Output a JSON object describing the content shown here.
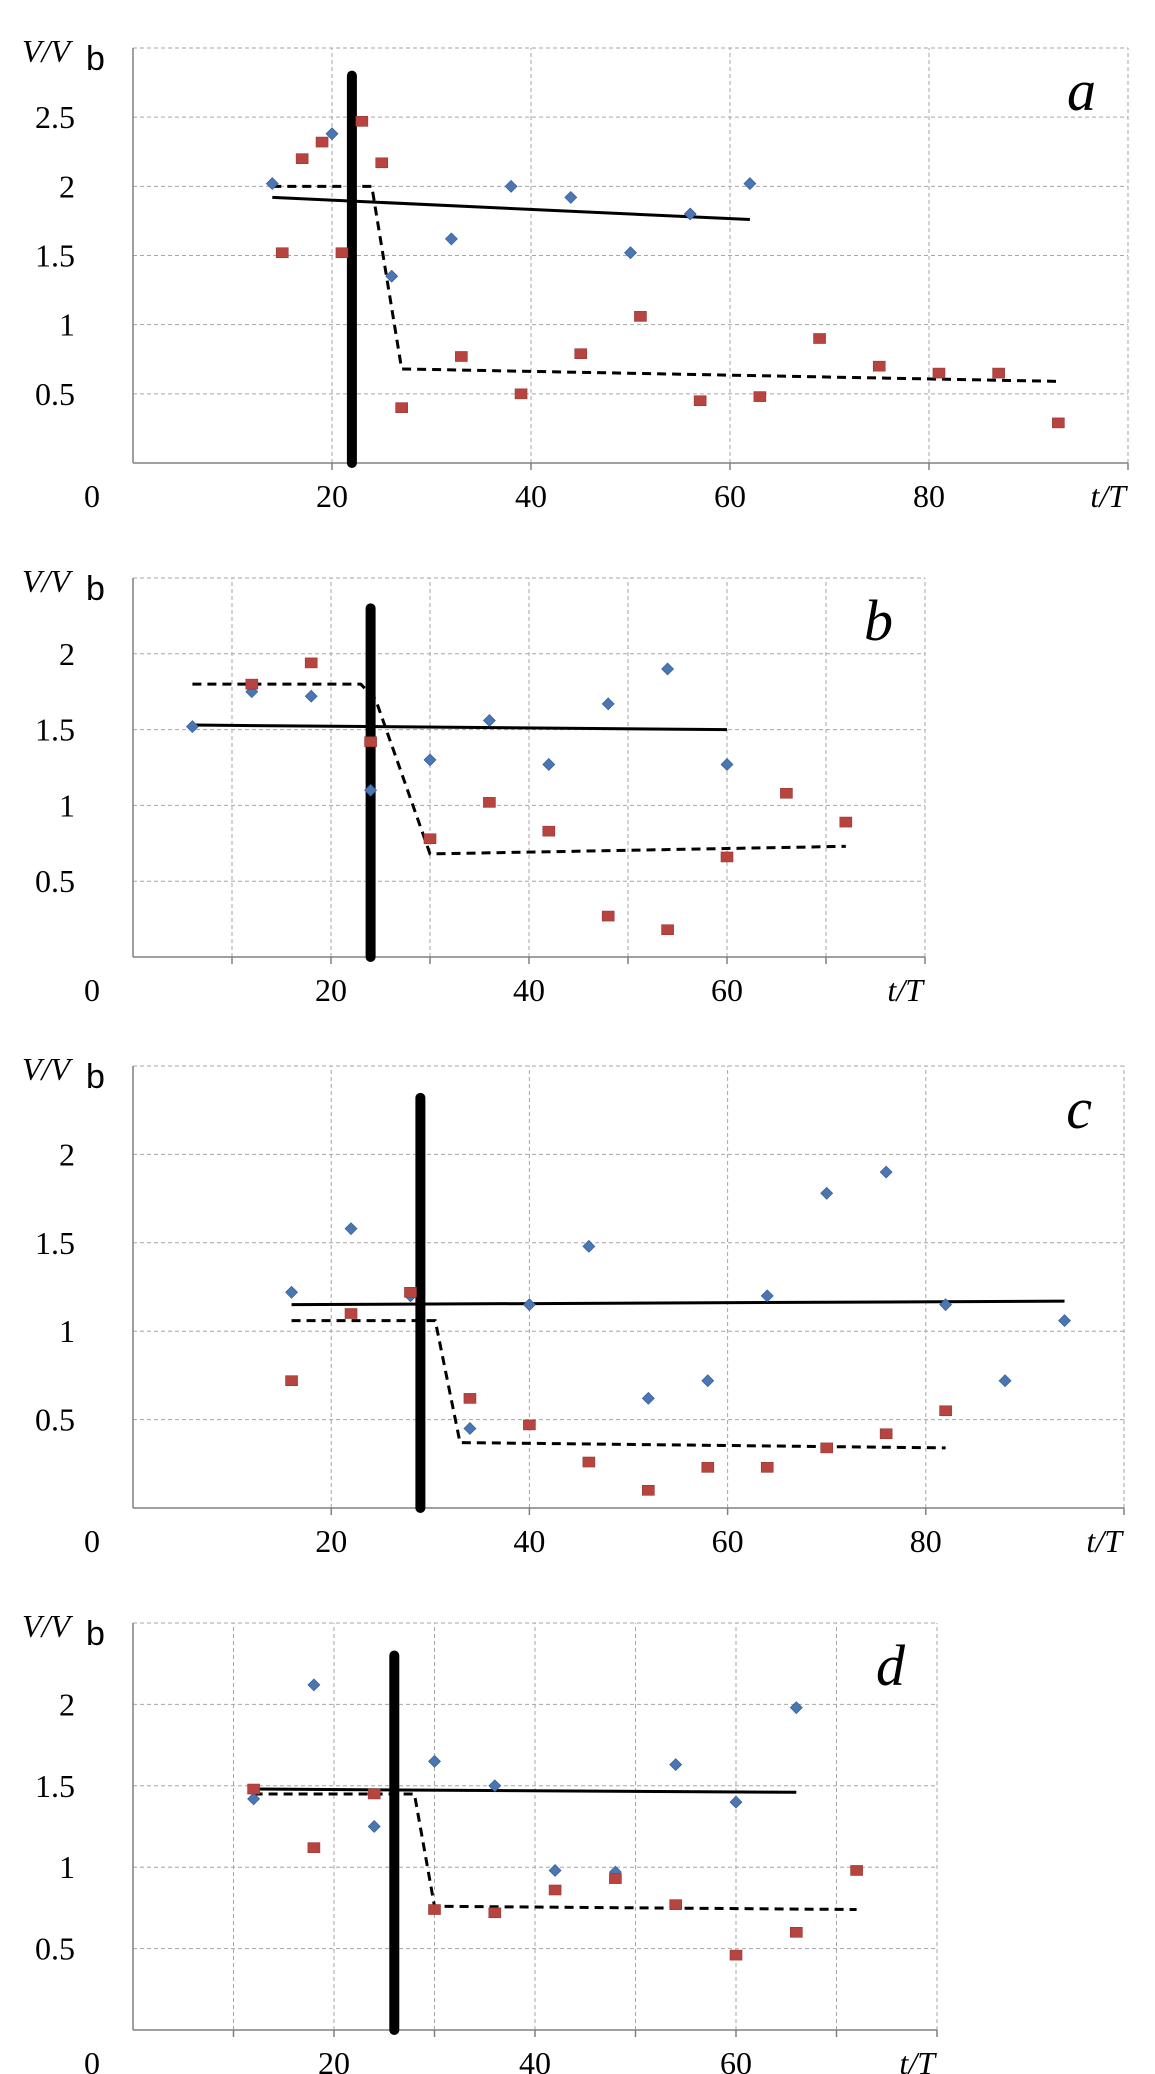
{
  "chart_data": [
    {
      "type": "scatter",
      "panel": "a",
      "ylabel_main": "V/V",
      "ylabel_sub": "b",
      "xlabel": "t/T",
      "origin_label": "0",
      "xlim": [
        0,
        100
      ],
      "ylim": [
        0,
        3
      ],
      "xticks": [
        20,
        40,
        60,
        80
      ],
      "yticks": [
        0.5,
        1,
        1.5,
        2,
        2.5
      ],
      "ytick_labels": [
        "0.5",
        "1",
        "1.5",
        "2",
        "2.5"
      ],
      "xgrid": [
        20,
        40,
        60,
        80,
        100
      ],
      "ygrid": [
        0.5,
        1,
        1.5,
        2,
        2.5,
        3
      ],
      "marker_x": 22,
      "marker_ytop": 2.8,
      "series": [
        {
          "name": "blue",
          "x": [
            14,
            20,
            26,
            32,
            38,
            44,
            50,
            56,
            62
          ],
          "y": [
            2.02,
            2.38,
            1.35,
            1.62,
            2.0,
            1.92,
            1.52,
            1.8,
            2.02
          ]
        },
        {
          "name": "red",
          "x": [
            15,
            17,
            19,
            21,
            23,
            25,
            27,
            33,
            39,
            45,
            51,
            57,
            63,
            69,
            75,
            81,
            87,
            93
          ],
          "y": [
            1.52,
            2.2,
            2.32,
            1.52,
            2.47,
            2.17,
            0.4,
            0.77,
            0.5,
            0.79,
            1.06,
            0.45,
            0.48,
            0.9,
            0.7,
            0.65,
            0.65,
            0.29
          ]
        }
      ],
      "trend_solid": {
        "x": [
          14,
          62
        ],
        "y": [
          1.92,
          1.76
        ]
      },
      "trend_dashed": {
        "x": [
          14,
          24,
          27,
          93
        ],
        "y": [
          2.0,
          2.0,
          0.68,
          0.59
        ]
      }
    },
    {
      "type": "scatter",
      "panel": "b",
      "ylabel_main": "V/V",
      "ylabel_sub": "b",
      "xlabel": "t/T",
      "origin_label": "0",
      "xlim": [
        0,
        80
      ],
      "ylim": [
        0,
        2.5
      ],
      "xticks": [
        20,
        40,
        60
      ],
      "yticks": [
        0.5,
        1,
        1.5,
        2
      ],
      "ytick_labels": [
        "0.5",
        "1",
        "1.5",
        "2"
      ],
      "xgrid": [
        10,
        20,
        30,
        40,
        50,
        60,
        70,
        80
      ],
      "ygrid": [
        0.5,
        1,
        1.5,
        2,
        2.5
      ],
      "marker_x": 24,
      "marker_ytop": 2.3,
      "series": [
        {
          "name": "blue",
          "x": [
            6,
            12,
            18,
            24,
            30,
            36,
            42,
            48,
            54,
            60
          ],
          "y": [
            1.52,
            1.75,
            1.72,
            1.1,
            1.3,
            1.56,
            1.27,
            1.67,
            1.9,
            1.27
          ]
        },
        {
          "name": "red",
          "x": [
            12,
            18,
            24,
            30,
            36,
            42,
            48,
            54,
            60,
            66,
            72
          ],
          "y": [
            1.8,
            1.94,
            1.42,
            0.78,
            1.02,
            0.83,
            0.27,
            0.18,
            0.66,
            1.08,
            0.89
          ]
        }
      ],
      "trend_solid": {
        "x": [
          6,
          60
        ],
        "y": [
          1.53,
          1.5
        ]
      },
      "trend_dashed": {
        "x": [
          6,
          23,
          24.5,
          30,
          72
        ],
        "y": [
          1.8,
          1.8,
          1.7,
          0.68,
          0.73
        ]
      }
    },
    {
      "type": "scatter",
      "panel": "c",
      "ylabel_main": "V/V",
      "ylabel_sub": "b",
      "xlabel": "t/T",
      "origin_label": "0",
      "xlim": [
        0,
        100
      ],
      "ylim": [
        0,
        2.5
      ],
      "xticks": [
        20,
        40,
        60,
        80
      ],
      "yticks": [
        0.5,
        1,
        1.5,
        2
      ],
      "ytick_labels": [
        "0.5",
        "1",
        "1.5",
        "2"
      ],
      "xgrid": [
        20,
        40,
        60,
        80,
        100
      ],
      "ygrid": [
        0.5,
        1,
        1.5,
        2,
        2.5
      ],
      "marker_x": 29,
      "marker_ytop": 2.32,
      "series": [
        {
          "name": "blue",
          "x": [
            16,
            22,
            28,
            34,
            40,
            46,
            52,
            58,
            64,
            70,
            76,
            82,
            88,
            94
          ],
          "y": [
            1.22,
            1.58,
            1.2,
            0.45,
            1.15,
            1.48,
            0.62,
            0.72,
            1.2,
            1.78,
            1.9,
            1.15,
            0.72,
            1.06
          ]
        },
        {
          "name": "red",
          "x": [
            16,
            22,
            28,
            34,
            40,
            46,
            52,
            58,
            64,
            70,
            76,
            82
          ],
          "y": [
            0.72,
            1.1,
            1.22,
            0.62,
            0.47,
            0.26,
            0.1,
            0.23,
            0.23,
            0.34,
            0.42,
            0.55
          ]
        }
      ],
      "trend_solid": {
        "x": [
          16,
          94
        ],
        "y": [
          1.15,
          1.17
        ]
      },
      "trend_dashed": {
        "x": [
          16,
          30.5,
          33,
          82
        ],
        "y": [
          1.06,
          1.06,
          0.37,
          0.34
        ]
      }
    },
    {
      "type": "scatter",
      "panel": "d",
      "ylabel_main": "V/V",
      "ylabel_sub": "b",
      "xlabel": "t/T",
      "origin_label": "0",
      "xlim": [
        0,
        80
      ],
      "ylim": [
        0,
        2.5
      ],
      "xticks": [
        20,
        40,
        60
      ],
      "yticks": [
        0.5,
        1,
        1.5,
        2
      ],
      "ytick_labels": [
        "0.5",
        "1",
        "1.5",
        "2"
      ],
      "xgrid": [
        10,
        20,
        30,
        40,
        50,
        60,
        70,
        80
      ],
      "ygrid": [
        0.5,
        1,
        1.5,
        2,
        2.5
      ],
      "marker_x": 26,
      "marker_ytop": 2.3,
      "series": [
        {
          "name": "blue",
          "x": [
            12,
            18,
            24,
            30,
            36,
            42,
            48,
            54,
            60,
            66
          ],
          "y": [
            1.42,
            2.12,
            1.25,
            1.65,
            1.5,
            0.98,
            0.97,
            1.63,
            1.4,
            1.98
          ]
        },
        {
          "name": "red",
          "x": [
            12,
            18,
            24,
            30,
            36,
            42,
            48,
            54,
            60,
            66,
            72
          ],
          "y": [
            1.48,
            1.12,
            1.45,
            0.74,
            0.72,
            0.86,
            0.93,
            0.77,
            0.46,
            0.6,
            0.98
          ]
        }
      ],
      "trend_solid": {
        "x": [
          12,
          66
        ],
        "y": [
          1.48,
          1.46
        ]
      },
      "trend_dashed": {
        "x": [
          12,
          28,
          30,
          72
        ],
        "y": [
          1.45,
          1.45,
          0.76,
          0.74
        ]
      }
    }
  ]
}
